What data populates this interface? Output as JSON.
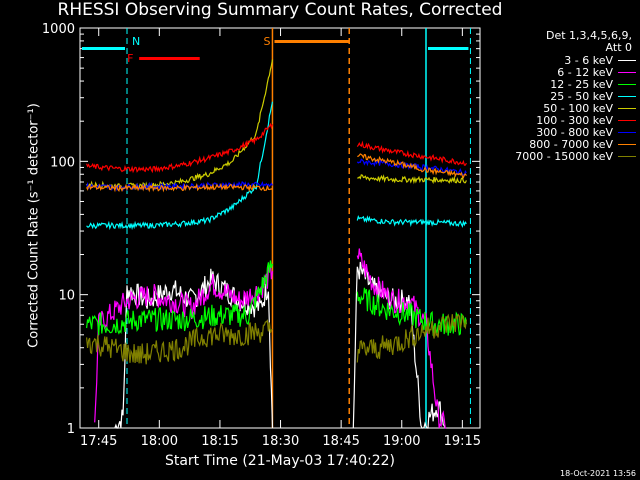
{
  "title": "RHESSI Observing Summary Count Rates, Corrected",
  "footer": "18-Oct-2021 13:56",
  "legend_header": [
    "Det 1,3,4,5,6,9,",
    "Att 0"
  ],
  "chart_data": {
    "type": "line",
    "title": "RHESSI Observing Summary Count Rates, Corrected",
    "xlabel": "Start Time (21-May-03 17:40:22)",
    "ylabel": "Corrected Count Rate (s⁻¹ detector⁻¹)",
    "x_ticks": [
      "17:45",
      "18:00",
      "18:15",
      "18:30",
      "18:45",
      "19:00",
      "19:15"
    ],
    "y_ticks": [
      "1",
      "10",
      "100",
      "1000"
    ],
    "ylim": [
      1,
      1000
    ],
    "y_scale": "log",
    "grid": false,
    "legend_placement": "right",
    "series": [
      {
        "name": "3 - 6 keV",
        "color": "#ffffff",
        "points": [
          [
            "17:49",
            1
          ],
          [
            "17:51",
            1.2
          ],
          [
            "17:52",
            11
          ],
          [
            "17:57",
            9
          ],
          [
            "18:03",
            11
          ],
          [
            "18:08",
            9
          ],
          [
            "18:13",
            13
          ],
          [
            "18:20",
            9
          ],
          [
            "18:25",
            8
          ],
          [
            "18:27",
            12
          ],
          [
            "18:28",
            1
          ],
          [
            "18:48",
            1
          ],
          [
            "18:49",
            16
          ],
          [
            "18:53",
            11
          ],
          [
            "18:58",
            9
          ],
          [
            "19:02",
            9
          ],
          [
            "19:05",
            1
          ],
          [
            "19:09",
            1.5
          ],
          [
            "19:11",
            1
          ]
        ]
      },
      {
        "name": "6 - 12 keV",
        "color": "#ff00ff",
        "points": [
          [
            "17:44",
            1
          ],
          [
            "17:45",
            6
          ],
          [
            "17:52",
            9
          ],
          [
            "17:58",
            10
          ],
          [
            "18:03",
            9
          ],
          [
            "18:08",
            8
          ],
          [
            "18:13",
            12
          ],
          [
            "18:20",
            9
          ],
          [
            "18:25",
            11
          ],
          [
            "18:28",
            15
          ],
          [
            "18:49",
            20
          ],
          [
            "18:53",
            12
          ],
          [
            "18:58",
            9
          ],
          [
            "19:02",
            9
          ],
          [
            "19:06",
            6
          ],
          [
            "19:09",
            1.2
          ],
          [
            "19:11",
            1
          ]
        ]
      },
      {
        "name": "12 - 25 keV",
        "color": "#00ff00",
        "points": [
          [
            "17:42",
            6
          ],
          [
            "17:48",
            6
          ],
          [
            "17:55",
            6.5
          ],
          [
            "18:05",
            6.5
          ],
          [
            "18:15",
            7
          ],
          [
            "18:22",
            7
          ],
          [
            "18:28",
            17
          ],
          [
            "18:49",
            10
          ],
          [
            "18:55",
            8
          ],
          [
            "19:02",
            7
          ],
          [
            "19:08",
            6
          ],
          [
            "19:16",
            6
          ]
        ]
      },
      {
        "name": "25 - 50 keV",
        "color": "#00ffff",
        "points": [
          [
            "17:42",
            33
          ],
          [
            "17:50",
            33
          ],
          [
            "17:58",
            33
          ],
          [
            "18:05",
            34
          ],
          [
            "18:12",
            36
          ],
          [
            "18:18",
            45
          ],
          [
            "18:24",
            65
          ],
          [
            "18:28",
            280
          ],
          [
            "18:49",
            37
          ],
          [
            "18:58",
            35
          ],
          [
            "19:06",
            35
          ],
          [
            "19:16",
            34
          ]
        ]
      },
      {
        "name": "50 - 100 keV",
        "color": "#cccc00",
        "points": [
          [
            "17:42",
            67
          ],
          [
            "17:50",
            65
          ],
          [
            "17:58",
            66
          ],
          [
            "18:05",
            70
          ],
          [
            "18:12",
            80
          ],
          [
            "18:18",
            100
          ],
          [
            "18:24",
            160
          ],
          [
            "18:28",
            580
          ],
          [
            "18:49",
            76
          ],
          [
            "18:58",
            73
          ],
          [
            "19:06",
            73
          ],
          [
            "19:16",
            72
          ]
        ]
      },
      {
        "name": "100 - 300 keV",
        "color": "#ff0000",
        "points": [
          [
            "17:42",
            92
          ],
          [
            "17:50",
            88
          ],
          [
            "17:58",
            87
          ],
          [
            "18:05",
            93
          ],
          [
            "18:12",
            105
          ],
          [
            "18:18",
            120
          ],
          [
            "18:24",
            145
          ],
          [
            "18:28",
            190
          ],
          [
            "18:49",
            135
          ],
          [
            "18:58",
            118
          ],
          [
            "19:06",
            108
          ],
          [
            "19:16",
            97
          ]
        ]
      },
      {
        "name": "300 - 800 keV",
        "color": "#0000ff",
        "points": [
          [
            "17:42",
            65
          ],
          [
            "17:50",
            64
          ],
          [
            "17:58",
            65
          ],
          [
            "18:05",
            65
          ],
          [
            "18:12",
            66
          ],
          [
            "18:20",
            67
          ],
          [
            "18:28",
            66
          ],
          [
            "18:49",
            100
          ],
          [
            "18:58",
            95
          ],
          [
            "19:06",
            90
          ],
          [
            "19:16",
            82
          ]
        ]
      },
      {
        "name": "800 - 7000 keV",
        "color": "#ff8000",
        "points": [
          [
            "17:42",
            64
          ],
          [
            "17:50",
            63
          ],
          [
            "17:58",
            63
          ],
          [
            "18:05",
            63
          ],
          [
            "18:12",
            64
          ],
          [
            "18:20",
            64
          ],
          [
            "18:28",
            63
          ],
          [
            "18:49",
            110
          ],
          [
            "18:58",
            98
          ],
          [
            "19:06",
            86
          ],
          [
            "19:16",
            78
          ]
        ]
      },
      {
        "name": "7000 - 15000 keV",
        "color": "#808000",
        "points": [
          [
            "17:42",
            4.5
          ],
          [
            "17:48",
            4
          ],
          [
            "17:55",
            3.5
          ],
          [
            "18:05",
            4
          ],
          [
            "18:12",
            5
          ],
          [
            "18:20",
            5
          ],
          [
            "18:28",
            5.5
          ],
          [
            "18:49",
            3.8
          ],
          [
            "18:55",
            4
          ],
          [
            "19:00",
            4.5
          ],
          [
            "19:06",
            5.5
          ],
          [
            "19:16",
            6.5
          ]
        ]
      }
    ],
    "annotations": [
      {
        "label": "N",
        "color": "#00ffff",
        "x": "17:52"
      },
      {
        "label": "F",
        "color": "#ff0000",
        "x": "17:55"
      },
      {
        "label": "S",
        "color": "#ff8000",
        "x": "18:28"
      }
    ]
  }
}
